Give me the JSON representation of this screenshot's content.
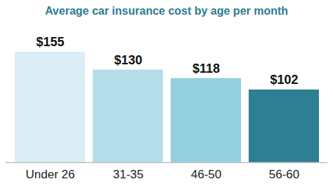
{
  "chart_data": {
    "type": "bar",
    "title": "Average car insurance cost by age per month",
    "categories": [
      "Under 26",
      "31-35",
      "46-50",
      "56-60"
    ],
    "values": [
      155,
      130,
      118,
      102
    ],
    "value_labels": [
      "$155",
      "$130",
      "$118",
      "$102"
    ],
    "colors": [
      "#dbeef6",
      "#b5dde9",
      "#94cfe0",
      "#2f7f93"
    ],
    "ylim": [
      0,
      155
    ],
    "data_labels": true,
    "tick_labels": "x",
    "grid": false
  }
}
